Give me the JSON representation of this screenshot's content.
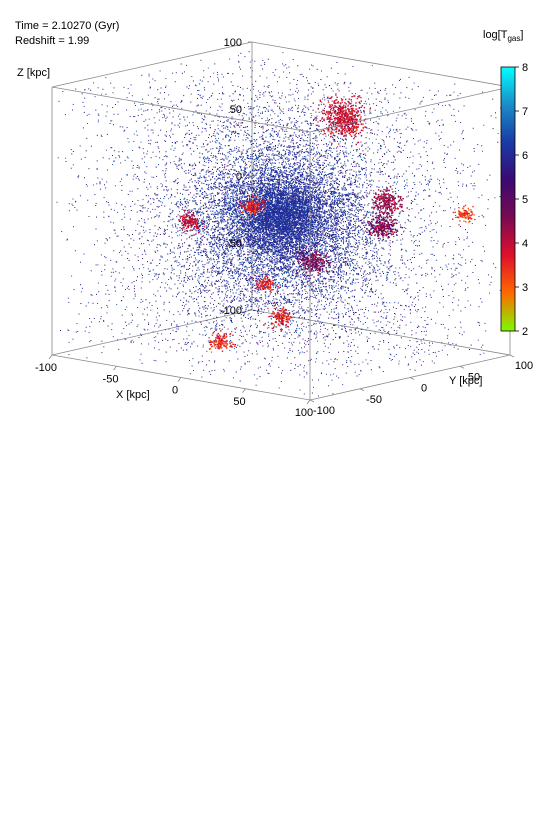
{
  "header": {
    "time_label": "Time = 2.10270 (Gyr)",
    "redshift_label": "Redshift = 1.99"
  },
  "chart_data": {
    "type": "scatter",
    "dimensions": 3,
    "title": "",
    "axes": {
      "x": {
        "label": "X [kpc]",
        "range": [
          -100,
          100
        ],
        "ticks": [
          "-100",
          "-50",
          "0",
          "50",
          "100"
        ]
      },
      "y": {
        "label": "Y [kpc]",
        "range": [
          -100,
          100
        ],
        "ticks": [
          "-100",
          "-50",
          "0",
          "50",
          "100"
        ]
      },
      "z": {
        "label": "Z [kpc]",
        "range": [
          -100,
          100
        ],
        "ticks": [
          "-100",
          "-50",
          "0",
          "50",
          "100"
        ]
      }
    },
    "colorbar": {
      "label_main": "log[T",
      "label_sub": "gas",
      "label_close": "]",
      "range": [
        2,
        8
      ],
      "ticks": [
        "2",
        "3",
        "4",
        "5",
        "6",
        "7",
        "8"
      ],
      "stops": [
        "#7cfc00",
        "#ff6a00",
        "#e0102c",
        "#7a0a52",
        "#3a0a72",
        "#1a3aa6",
        "#1b8cc8",
        "#00ffff"
      ]
    },
    "grid": false,
    "legend": "none",
    "clumps": [
      {
        "x": -18,
        "y": 85,
        "z": 60,
        "logT": 3.9,
        "radius_kpc": 12
      },
      {
        "x": -30,
        "y": 10,
        "z": 5,
        "logT": 3.7,
        "radius_kpc": 6
      },
      {
        "x": 35,
        "y": 60,
        "z": 10,
        "logT": 4.3,
        "radius_kpc": 8
      },
      {
        "x": 55,
        "y": 30,
        "z": 0,
        "logT": 4.6,
        "radius_kpc": 8
      },
      {
        "x": 40,
        "y": -20,
        "z": -20,
        "logT": 4.6,
        "radius_kpc": 8
      },
      {
        "x": 10,
        "y": -30,
        "z": -40,
        "logT": 3.6,
        "radius_kpc": 5
      },
      {
        "x": -40,
        "y": -40,
        "z": 0,
        "logT": 4.1,
        "radius_kpc": 6
      },
      {
        "x": 30,
        "y": -40,
        "z": -60,
        "logT": 3.7,
        "radius_kpc": 6
      },
      {
        "x": -40,
        "y": -10,
        "z": -95,
        "logT": 3.5,
        "radius_kpc": 6
      },
      {
        "x": 80,
        "y": 80,
        "z": 5,
        "logT": 3.3,
        "radius_kpc": 5
      }
    ]
  }
}
